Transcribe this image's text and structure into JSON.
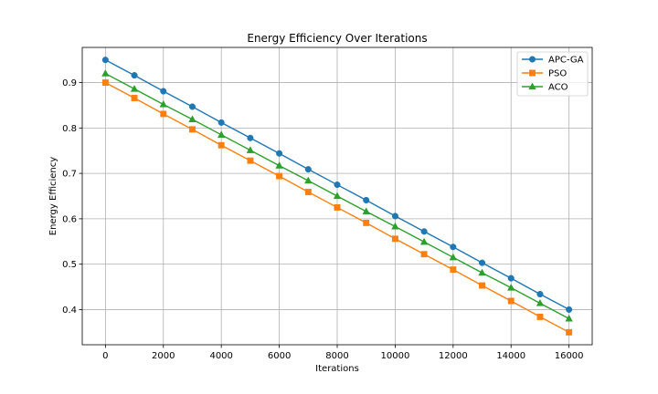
{
  "chart_data": {
    "type": "line",
    "title": "Energy Efficiency Over Iterations",
    "xlabel": "Iterations",
    "ylabel": "Energy Efficiency",
    "xlim": [
      -800,
      16800
    ],
    "ylim": [
      0.3225,
      0.9775
    ],
    "x_ticks": [
      0,
      2000,
      4000,
      6000,
      8000,
      10000,
      12000,
      14000,
      16000
    ],
    "y_ticks": [
      0.4,
      0.5,
      0.6,
      0.7,
      0.8,
      0.9
    ],
    "y_tick_labels": [
      "0.4",
      "0.5",
      "0.6",
      "0.7",
      "0.8",
      "0.9"
    ],
    "grid": true,
    "legend_position": "top-right",
    "x": [
      0,
      1000,
      2000,
      3000,
      4000,
      5000,
      6000,
      7000,
      8000,
      9000,
      10000,
      11000,
      12000,
      13000,
      14000,
      15000,
      16000
    ],
    "series": [
      {
        "name": "APC-GA",
        "color": "#1f77b4",
        "marker": "circle",
        "values": [
          0.95,
          0.916,
          0.881,
          0.847,
          0.812,
          0.778,
          0.744,
          0.709,
          0.675,
          0.641,
          0.606,
          0.572,
          0.538,
          0.503,
          0.469,
          0.434,
          0.4
        ]
      },
      {
        "name": "PSO",
        "color": "#ff7f0e",
        "marker": "square",
        "values": [
          0.9,
          0.866,
          0.831,
          0.797,
          0.762,
          0.728,
          0.694,
          0.659,
          0.625,
          0.591,
          0.556,
          0.522,
          0.488,
          0.453,
          0.419,
          0.384,
          0.35
        ]
      },
      {
        "name": "ACO",
        "color": "#2ca02c",
        "marker": "triangle",
        "values": [
          0.92,
          0.886,
          0.852,
          0.819,
          0.785,
          0.751,
          0.717,
          0.684,
          0.65,
          0.616,
          0.583,
          0.549,
          0.515,
          0.481,
          0.448,
          0.414,
          0.38
        ]
      }
    ]
  }
}
